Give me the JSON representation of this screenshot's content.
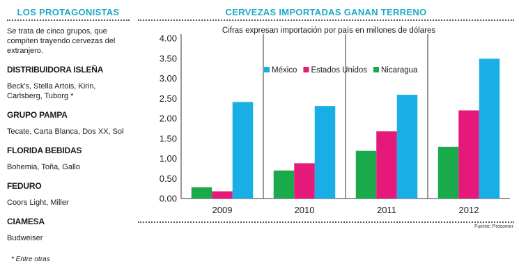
{
  "sidebar": {
    "title": "LOS PROTAGONISTAS",
    "intro": "Se trata de cinco grupos, que compiten trayendo cervezas del extranjero.",
    "groups": [
      {
        "name": "DISTRIBUIDORA ISLEÑA",
        "brands": "Beck's, Stella Artois, Kirin, Carlsberg, Tuborg *"
      },
      {
        "name": "GRUPO PAMPA",
        "brands": "Tecate, Carta Blanca, Dos XX, Sol"
      },
      {
        "name": "FLORIDA BEBIDAS",
        "brands": "Bohemia, Toña, Gallo"
      },
      {
        "name": "FEDURO",
        "brands": "Coors Light, Miller"
      },
      {
        "name": "CIAMESA",
        "brands": "Budweiser"
      }
    ],
    "footnote": "* Entre otras"
  },
  "chart_title": "CERVEZAS IMPORTADAS GANAN TERRENO",
  "source": "Fuente: Procomer",
  "colors": {
    "accent": "#1ba9c6",
    "nicaragua": "#1aaa4b",
    "estados_unidos": "#e4197a",
    "mexico": "#1aaee6"
  },
  "chart_data": {
    "type": "bar",
    "subtitle": "Cifras expresan importación por país en millones de dólares",
    "categories": [
      "2009",
      "2010",
      "2011",
      "2012"
    ],
    "series": [
      {
        "name": "Nicaragua",
        "values": [
          0.28,
          0.7,
          1.19,
          1.29
        ]
      },
      {
        "name": "Estados Unidos",
        "values": [
          0.18,
          0.88,
          1.68,
          2.2
        ]
      },
      {
        "name": "México",
        "values": [
          2.41,
          2.31,
          2.59,
          3.49
        ]
      }
    ],
    "legend_order": [
      "México",
      "Estados Unidos",
      "Nicaragua"
    ],
    "ylim": [
      0,
      4
    ],
    "yticks": [
      "4.00",
      "3.50",
      "3.00",
      "2.50",
      "2.00",
      "1.50",
      "1.00",
      "0.50",
      "0.00"
    ],
    "grid": "vertical separators",
    "legend_position": "top-left"
  }
}
